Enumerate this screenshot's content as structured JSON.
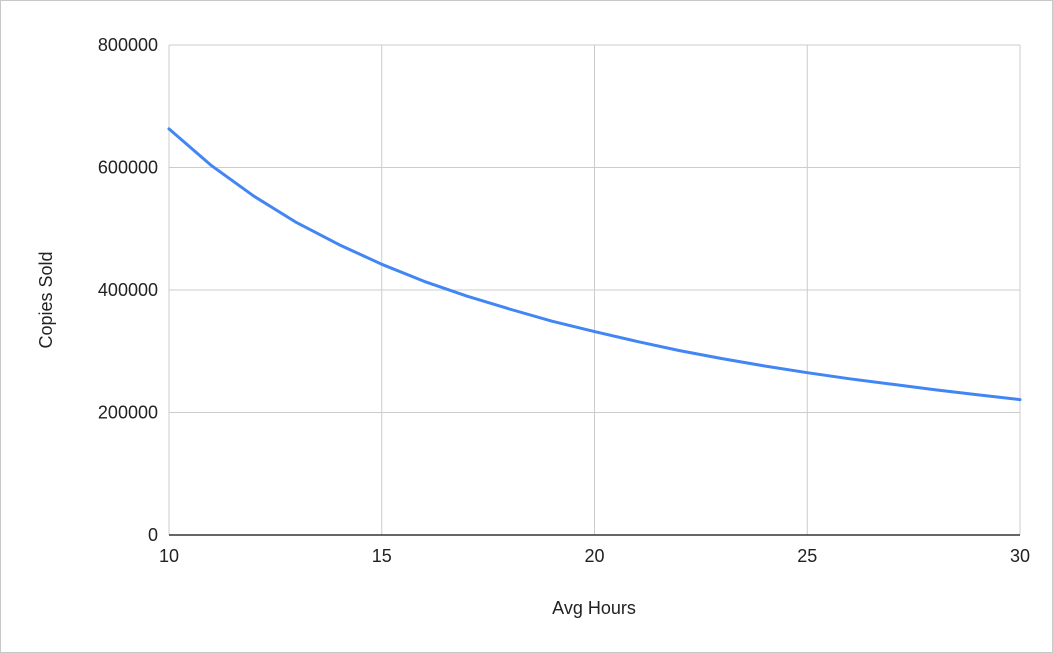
{
  "chart_data": {
    "type": "line",
    "title": "",
    "xlabel": "Avg Hours",
    "ylabel": "Copies Sold",
    "xlim": [
      10,
      30
    ],
    "ylim": [
      0,
      800000
    ],
    "x_ticks": [
      10,
      15,
      20,
      25,
      30
    ],
    "y_ticks": [
      0,
      200000,
      400000,
      600000,
      800000
    ],
    "x_tick_labels": [
      "10",
      "15",
      "20",
      "25",
      "30"
    ],
    "y_tick_labels": [
      "0",
      "200000",
      "400000",
      "600000",
      "800000"
    ],
    "grid": true,
    "legend": "none",
    "series": [
      {
        "color": "#4285f4",
        "x": [
          10,
          11,
          12,
          13,
          14,
          15,
          16,
          17,
          18,
          19,
          20,
          21,
          22,
          23,
          24,
          25,
          26,
          27,
          28,
          29,
          30
        ],
        "y": [
          663000,
          603000,
          553000,
          510000,
          474000,
          442000,
          414000,
          390000,
          369000,
          349000,
          332000,
          316000,
          301000,
          288000,
          276000,
          265000,
          255000,
          246000,
          237000,
          229000,
          221000
        ]
      }
    ],
    "colors": {
      "gridline": "#cccccc",
      "axis": "#333333",
      "text": "#222222"
    }
  }
}
